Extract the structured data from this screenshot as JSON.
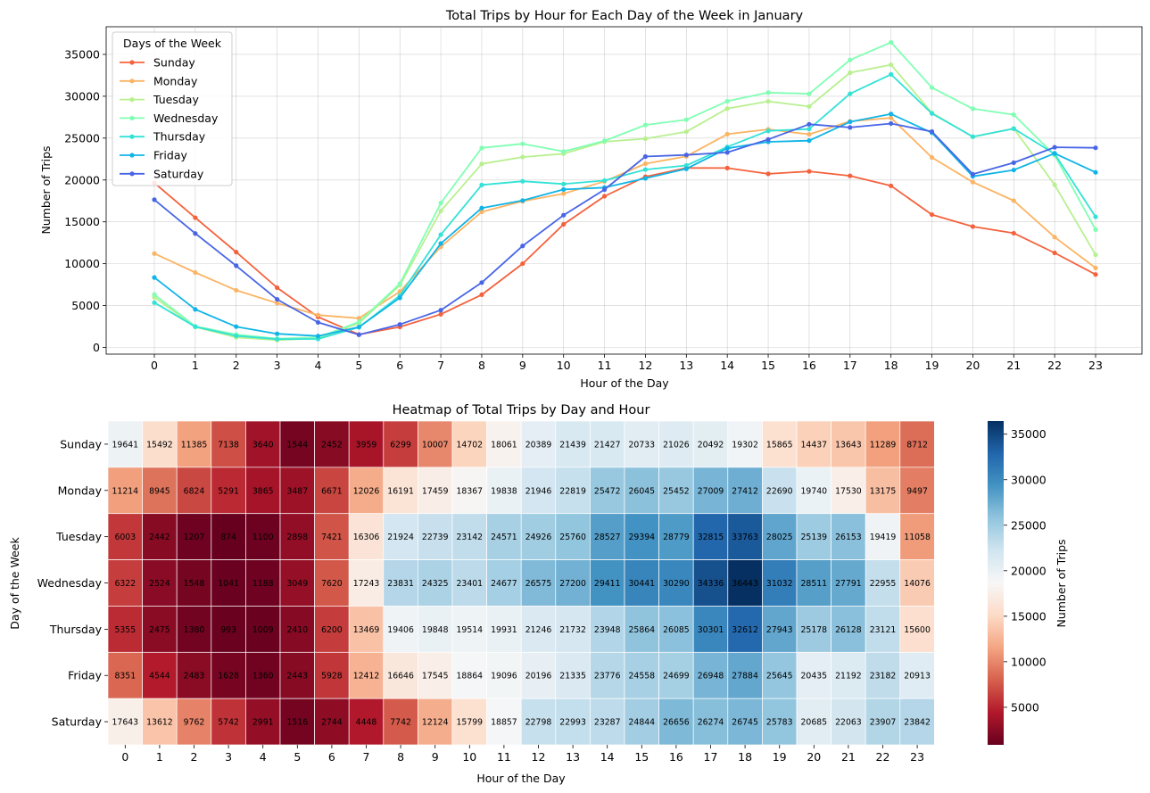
{
  "chart_data": [
    {
      "type": "line",
      "title": "Total Trips by Hour for Each Day of the Week in January",
      "xlabel": "Hour of the Day",
      "ylabel": "Number of Trips",
      "x": [
        0,
        1,
        2,
        3,
        4,
        5,
        6,
        7,
        8,
        9,
        10,
        11,
        12,
        13,
        14,
        15,
        16,
        17,
        18,
        19,
        20,
        21,
        22,
        23
      ],
      "yticks": [
        0,
        5000,
        10000,
        15000,
        20000,
        25000,
        30000,
        35000
      ],
      "ylim": [
        -800,
        38300
      ],
      "grid": true,
      "legend": {
        "title": "Days of the Week",
        "placement": "top-left"
      },
      "series": [
        {
          "name": "Sunday",
          "color": "#f4623d",
          "values": [
            19641,
            15492,
            11385,
            7138,
            3640,
            1544,
            2452,
            3959,
            6299,
            10007,
            14702,
            18061,
            20389,
            21439,
            21427,
            20733,
            21026,
            20492,
            19302,
            15865,
            14437,
            13643,
            11289,
            8712
          ]
        },
        {
          "name": "Monday",
          "color": "#fbb464",
          "values": [
            11214,
            8945,
            6824,
            5291,
            3865,
            3487,
            6671,
            12026,
            16191,
            17459,
            18367,
            19838,
            21946,
            22819,
            25472,
            26045,
            25452,
            27009,
            27412,
            22690,
            19740,
            17530,
            13175,
            9497
          ]
        },
        {
          "name": "Tuesday",
          "color": "#b8f08f",
          "values": [
            6003,
            2442,
            1207,
            874,
            1100,
            2898,
            7421,
            16306,
            21924,
            22739,
            23142,
            24571,
            24926,
            25760,
            28527,
            29394,
            28779,
            32815,
            33763,
            28025,
            25139,
            26153,
            19419,
            11058
          ]
        },
        {
          "name": "Wednesday",
          "color": "#80ffb3",
          "values": [
            6322,
            2524,
            1548,
            1041,
            1188,
            3049,
            7620,
            17243,
            23831,
            24325,
            23401,
            24677,
            26575,
            27200,
            29411,
            30441,
            30290,
            34336,
            36443,
            31032,
            28511,
            27791,
            22955,
            14076
          ]
        },
        {
          "name": "Thursday",
          "color": "#33e2d6",
          "values": [
            5355,
            2475,
            1380,
            993,
            1009,
            2410,
            6200,
            13469,
            19406,
            19848,
            19514,
            19931,
            21246,
            21732,
            23948,
            25864,
            26085,
            30301,
            32612,
            27943,
            25178,
            26128,
            23121,
            15600
          ]
        },
        {
          "name": "Friday",
          "color": "#10b4e6",
          "values": [
            8351,
            4544,
            2483,
            1628,
            1360,
            2443,
            5928,
            12412,
            16646,
            17545,
            18864,
            19096,
            20196,
            21335,
            23776,
            24558,
            24699,
            26948,
            27884,
            25645,
            20435,
            21192,
            23182,
            20913
          ]
        },
        {
          "name": "Saturday",
          "color": "#4865e6",
          "values": [
            17643,
            13612,
            9762,
            5742,
            2991,
            1516,
            2744,
            4448,
            7742,
            12124,
            15799,
            18857,
            22798,
            22993,
            23287,
            24844,
            26656,
            26274,
            26745,
            25783,
            20685,
            22063,
            23907,
            23842
          ]
        }
      ]
    },
    {
      "type": "heatmap",
      "title": "Heatmap of Total Trips by Day and Hour",
      "xlabel": "Hour of the Day",
      "ylabel": "Day of the Week",
      "colorbar_label": "Number of Trips",
      "colorbar_ticks": [
        5000,
        10000,
        15000,
        20000,
        25000,
        30000,
        35000
      ],
      "colormap": "RdBu",
      "vmin": 874,
      "vmax": 36443,
      "columns": [
        "0",
        "1",
        "2",
        "3",
        "4",
        "5",
        "6",
        "7",
        "8",
        "9",
        "10",
        "11",
        "12",
        "13",
        "14",
        "15",
        "16",
        "17",
        "18",
        "19",
        "20",
        "21",
        "22",
        "23"
      ],
      "rows": [
        "Sunday",
        "Monday",
        "Tuesday",
        "Wednesday",
        "Thursday",
        "Friday",
        "Saturday"
      ],
      "note": "cell values identical to line chart series values"
    }
  ]
}
